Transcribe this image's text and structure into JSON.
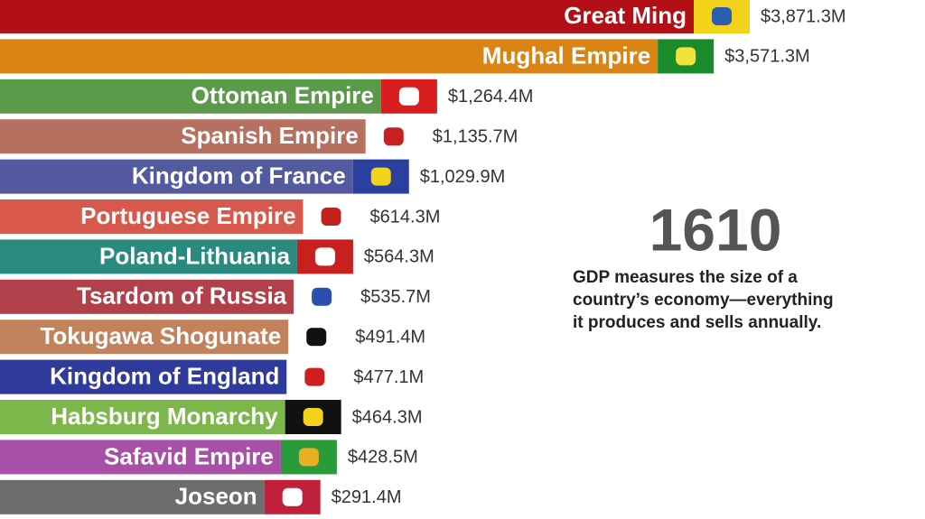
{
  "chart_data": {
    "type": "bar",
    "categories": [
      "Great Ming",
      "Mughal Empire",
      "Ottoman Empire",
      "Spanish Empire",
      "Kingdom of France",
      "Portuguese Empire",
      "Poland-Lithuania",
      "Tsardom of Russia",
      "Tokugawa Shogunate",
      "Kingdom of England",
      "Habsburg Monarchy",
      "Safavid Empire",
      "Joseon"
    ],
    "values": [
      3871.3,
      3571.3,
      1264.4,
      1135.7,
      1029.9,
      614.3,
      564.3,
      535.7,
      491.4,
      477.1,
      464.3,
      428.5,
      291.4
    ],
    "value_labels": [
      "$3,871.3M",
      "$3,571.3M",
      "$1,264.4M",
      "$1,135.7M",
      "$1,029.9M",
      "$614.3M",
      "$564.3M",
      "$535.7M",
      "$491.4M",
      "$477.1M",
      "$464.3M",
      "$428.5M",
      "$291.4M"
    ],
    "colors": [
      "#b30f16",
      "#d98414",
      "#5b9a4b",
      "#b5705f",
      "#535aa0",
      "#d8584b",
      "#2a8a80",
      "#b2404b",
      "#c1825c",
      "#2f3b9c",
      "#7db64b",
      "#a850a8",
      "#6e6e6e"
    ],
    "year": "1610",
    "annotation": [
      "GDP measures the size of a",
      "country’s economy—everything",
      "it produces and sells annually."
    ]
  }
}
